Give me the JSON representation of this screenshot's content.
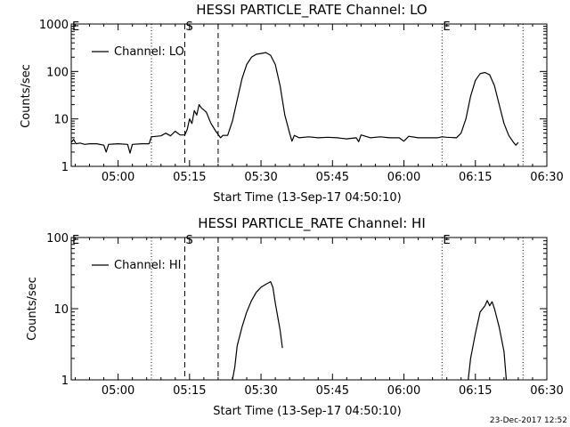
{
  "chart_data": [
    {
      "type": "line",
      "title": "HESSI PARTICLE_RATE Channel: LO",
      "xlabel": "Start Time (13-Sep-17 04:50:10)",
      "ylabel": "Counts/sec",
      "x_unit": "UT time (HH:MM, 13-Sep-17)",
      "xlim": [
        "04:50:10",
        "06:30:00"
      ],
      "x_ticks": [
        "05:00",
        "05:15",
        "05:30",
        "05:45",
        "06:00",
        "06:15",
        "06:30"
      ],
      "y_scale": "log",
      "ylim": [
        1,
        1000
      ],
      "y_ticks": [
        "1",
        "10",
        "100",
        "1000"
      ],
      "grid": false,
      "legend": {
        "position": "top-left",
        "entries": [
          "Channel: LO"
        ]
      },
      "markers": [
        {
          "time": "05:07",
          "style": "dotted",
          "label": ""
        },
        {
          "time": "05:14",
          "style": "dashed",
          "label": "S"
        },
        {
          "time": "05:21",
          "style": "dashed",
          "label": ""
        },
        {
          "time": "06:08",
          "style": "dotted",
          "label": "E"
        },
        {
          "time": "06:25",
          "style": "dotted",
          "label": ""
        }
      ],
      "edge_labels": [
        "E"
      ],
      "series": [
        {
          "name": "Channel: LO",
          "points": [
            [
              "04:50:10",
              3.2
            ],
            [
              "04:50:40",
              3.7
            ],
            [
              "04:51:10",
              3.0
            ],
            [
              "04:52:00",
              3.1
            ],
            [
              "04:53:00",
              2.9
            ],
            [
              "04:54:00",
              3.0
            ],
            [
              "04:55:30",
              3.0
            ],
            [
              "04:57:00",
              2.8
            ],
            [
              "04:57:30",
              2.0
            ],
            [
              "04:58:00",
              2.9
            ],
            [
              "05:00:00",
              3.0
            ],
            [
              "05:02:00",
              2.9
            ],
            [
              "05:02:30",
              1.9
            ],
            [
              "05:03:00",
              2.9
            ],
            [
              "05:05:00",
              3.0
            ],
            [
              "05:06:30",
              3.0
            ],
            [
              "05:07:00",
              4.2
            ],
            [
              "05:09:00",
              4.4
            ],
            [
              "05:10:00",
              5.0
            ],
            [
              "05:11:00",
              4.4
            ],
            [
              "05:12:00",
              5.5
            ],
            [
              "05:13:00",
              4.6
            ],
            [
              "05:14:00",
              4.6
            ],
            [
              "05:14:30",
              6.0
            ],
            [
              "05:15:00",
              10
            ],
            [
              "05:15:30",
              8
            ],
            [
              "05:16:00",
              15
            ],
            [
              "05:16:30",
              12
            ],
            [
              "05:17:00",
              20
            ],
            [
              "05:17:30",
              17
            ],
            [
              "05:18:30",
              14
            ],
            [
              "05:19:30",
              8
            ],
            [
              "05:20:30",
              5.5
            ],
            [
              "05:21:30",
              4.0
            ],
            [
              "05:22:00",
              4.5
            ],
            [
              "05:23:00",
              4.5
            ],
            [
              "05:24:00",
              9
            ],
            [
              "05:25:00",
              25
            ],
            [
              "05:26:00",
              70
            ],
            [
              "05:27:00",
              140
            ],
            [
              "05:28:00",
              200
            ],
            [
              "05:29:00",
              230
            ],
            [
              "05:30:00",
              240
            ],
            [
              "05:31:00",
              250
            ],
            [
              "05:32:00",
              220
            ],
            [
              "05:33:00",
              140
            ],
            [
              "05:34:00",
              50
            ],
            [
              "05:35:00",
              12
            ],
            [
              "05:36:00",
              5.0
            ],
            [
              "05:36:30",
              3.4
            ],
            [
              "05:37:00",
              4.5
            ],
            [
              "05:38:00",
              4.0
            ],
            [
              "05:40:00",
              4.2
            ],
            [
              "05:42:00",
              4.0
            ],
            [
              "05:44:00",
              4.1
            ],
            [
              "05:46:00",
              4.0
            ],
            [
              "05:48:00",
              3.8
            ],
            [
              "05:50:00",
              4.0
            ],
            [
              "05:50:30",
              3.3
            ],
            [
              "05:51:00",
              4.6
            ],
            [
              "05:53:00",
              4.0
            ],
            [
              "05:55:00",
              4.2
            ],
            [
              "05:57:00",
              4.0
            ],
            [
              "05:59:00",
              4.0
            ],
            [
              "06:00:00",
              3.4
            ],
            [
              "06:01:00",
              4.3
            ],
            [
              "06:03:00",
              4.0
            ],
            [
              "06:05:00",
              4.0
            ],
            [
              "06:07:00",
              4.0
            ],
            [
              "06:08:00",
              4.2
            ],
            [
              "06:09:00",
              4.1
            ],
            [
              "06:11:00",
              4.0
            ],
            [
              "06:12:00",
              5.0
            ],
            [
              "06:13:00",
              10
            ],
            [
              "06:14:00",
              30
            ],
            [
              "06:15:00",
              65
            ],
            [
              "06:16:00",
              90
            ],
            [
              "06:17:00",
              95
            ],
            [
              "06:18:00",
              85
            ],
            [
              "06:19:00",
              50
            ],
            [
              "06:20:00",
              20
            ],
            [
              "06:21:00",
              8
            ],
            [
              "06:22:00",
              4.5
            ],
            [
              "06:23:00",
              3.2
            ],
            [
              "06:23:30",
              2.8
            ],
            [
              "06:24:00",
              3.2
            ]
          ]
        }
      ]
    },
    {
      "type": "line",
      "title": "HESSI PARTICLE_RATE Channel: HI",
      "xlabel": "Start Time (13-Sep-17 04:50:10)",
      "ylabel": "Counts/sec",
      "x_unit": "UT time (HH:MM, 13-Sep-17)",
      "xlim": [
        "04:50:10",
        "06:30:00"
      ],
      "x_ticks": [
        "05:00",
        "05:15",
        "05:30",
        "05:45",
        "06:00",
        "06:15",
        "06:30"
      ],
      "y_scale": "log",
      "ylim": [
        1,
        100
      ],
      "y_ticks": [
        "1",
        "10",
        "100"
      ],
      "grid": false,
      "legend": {
        "position": "top-left",
        "entries": [
          "Channel: HI"
        ]
      },
      "markers": [
        {
          "time": "05:07",
          "style": "dotted",
          "label": ""
        },
        {
          "time": "05:14",
          "style": "dashed",
          "label": "S"
        },
        {
          "time": "05:21",
          "style": "dashed",
          "label": ""
        },
        {
          "time": "06:08",
          "style": "dotted",
          "label": "E"
        },
        {
          "time": "06:25",
          "style": "dotted",
          "label": ""
        }
      ],
      "edge_labels": [
        "E"
      ],
      "series": [
        {
          "name": "Channel: HI",
          "points": [
            [
              "05:24:00",
              1.0
            ],
            [
              "05:24:30",
              1.5
            ],
            [
              "05:25:00",
              3.0
            ],
            [
              "05:26:00",
              5.5
            ],
            [
              "05:27:00",
              9
            ],
            [
              "05:28:00",
              13
            ],
            [
              "05:29:00",
              17
            ],
            [
              "05:30:00",
              20
            ],
            [
              "05:31:00",
              22
            ],
            [
              "05:32:00",
              24
            ],
            [
              "05:32:30",
              20
            ],
            [
              "05:33:00",
              12
            ],
            [
              "05:34:00",
              5
            ],
            [
              "05:34:30",
              2.8
            ]
          ]
        },
        {
          "name": "Channel: HI",
          "points": [
            [
              "06:13:30",
              1.0
            ],
            [
              "06:14:00",
              2.0
            ],
            [
              "06:15:00",
              4.5
            ],
            [
              "06:16:00",
              9
            ],
            [
              "06:17:00",
              11
            ],
            [
              "06:17:30",
              13
            ],
            [
              "06:18:00",
              11
            ],
            [
              "06:18:30",
              12.5
            ],
            [
              "06:19:00",
              10
            ],
            [
              "06:20:00",
              5.5
            ],
            [
              "06:21:00",
              2.5
            ],
            [
              "06:21:30",
              1.0
            ]
          ]
        }
      ]
    }
  ],
  "footer": {
    "timestamp": "23-Dec-2017 12:52"
  }
}
